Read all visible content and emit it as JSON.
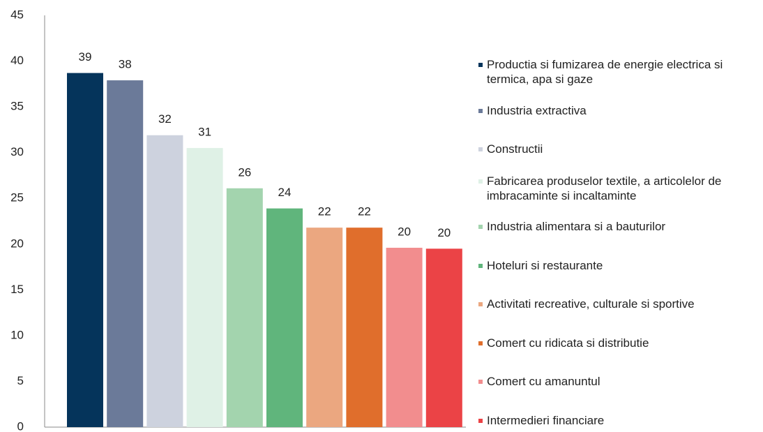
{
  "chart_data": {
    "type": "bar",
    "categories": [
      "Productia si fumizarea de energie electrica si termica, apa si gaze",
      "Industria extractiva",
      "Constructii",
      "Fabricarea produselor textile, a articolelor de imbracaminte si incaltaminte",
      "Industria alimentara si a bauturilor",
      "Hoteluri si restaurante",
      "Activitati recreative, culturale si sportive",
      "Comert cu ridicata si distributie",
      "Comert cu amanuntul",
      "Intermedieri financiare"
    ],
    "values": [
      38.7,
      37.9,
      31.9,
      30.5,
      26.1,
      23.9,
      21.8,
      21.8,
      19.6,
      19.5
    ],
    "value_labels": [
      "39",
      "38",
      "32",
      "31",
      "26",
      "24",
      "22",
      "22",
      "20",
      "20"
    ],
    "colors": [
      "#05345b",
      "#6b7a99",
      "#cdd2de",
      "#dff1e6",
      "#a3d4ae",
      "#60b57c",
      "#eba780",
      "#e06e2c",
      "#f28d8e",
      "#eb4346"
    ],
    "ylim": [
      0,
      45
    ],
    "yticks": [
      0,
      5,
      10,
      15,
      20,
      25,
      30,
      35,
      40,
      45
    ],
    "grid": false,
    "legend": "right"
  }
}
